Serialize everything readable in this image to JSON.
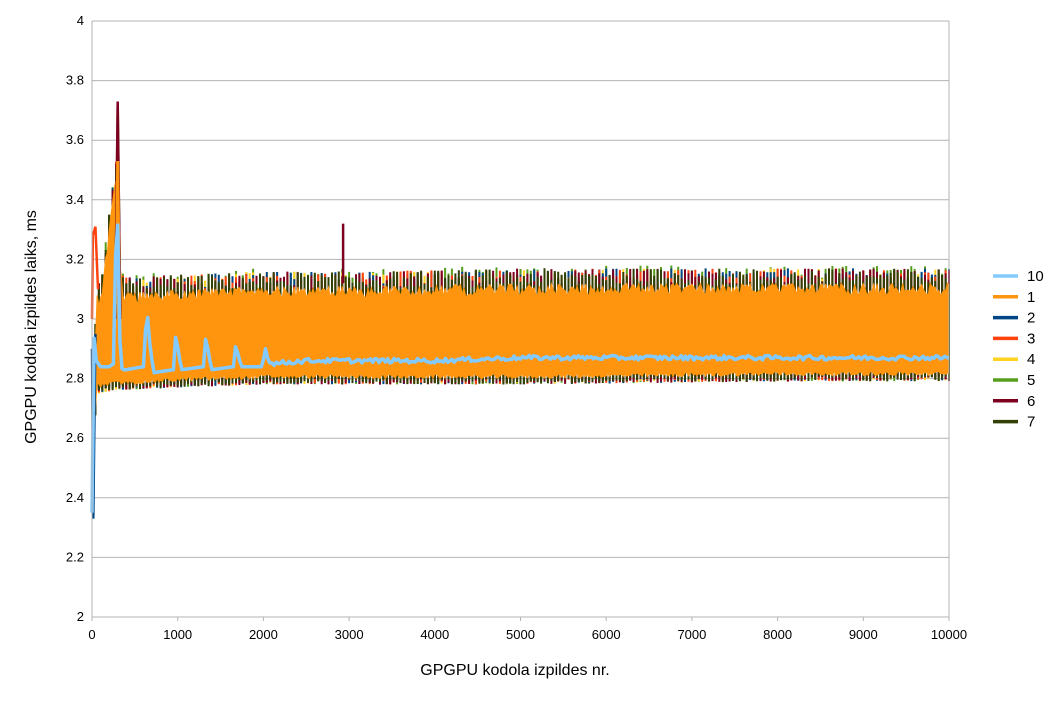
{
  "chart_data": {
    "type": "line",
    "title": "",
    "xlabel": "GPGPU kodola izpildes nr.",
    "ylabel": "GPGPU kodola izpildes laiks, ms",
    "xlim": [
      0,
      10000
    ],
    "ylim": [
      2,
      4
    ],
    "x_ticks": [
      0,
      1000,
      2000,
      3000,
      4000,
      5000,
      6000,
      7000,
      8000,
      9000,
      10000
    ],
    "y_ticks": [
      2,
      2.2,
      2.4,
      2.6,
      2.8,
      3,
      3.2,
      3.4,
      3.6,
      3.8,
      4
    ],
    "grid": "horizontal",
    "legend_position": "right",
    "series": [
      {
        "name": "10",
        "color": "#83caff",
        "description": "mean series",
        "x": [
          0,
          20,
          50,
          100,
          200,
          250,
          290,
          310,
          330,
          360,
          400,
          600,
          640,
          680,
          720,
          950,
          980,
          1010,
          1050,
          1300,
          1330,
          1360,
          1400,
          1650,
          1680,
          1710,
          1750,
          1990,
          2020,
          2050,
          2100,
          2500,
          3000,
          3500,
          4000,
          5000,
          6000,
          7000,
          8000,
          9000,
          10000
        ],
        "y": [
          2.35,
          2.95,
          2.86,
          2.84,
          2.84,
          2.85,
          3.43,
          3.2,
          2.84,
          2.83,
          2.83,
          2.84,
          3.04,
          2.9,
          2.82,
          2.83,
          2.96,
          2.88,
          2.83,
          2.84,
          2.95,
          2.88,
          2.83,
          2.84,
          2.92,
          2.87,
          2.84,
          2.84,
          2.91,
          2.87,
          2.85,
          2.86,
          2.86,
          2.86,
          2.86,
          2.87,
          2.87,
          2.87,
          2.87,
          2.87,
          2.87
        ]
      },
      {
        "name": "1",
        "color": "#ff950e",
        "description": "band",
        "x": [
          0,
          50,
          100,
          300,
          320,
          360,
          400,
          1000,
          2000,
          3000,
          5000,
          8000,
          10000
        ],
        "y_low": [
          2.4,
          2.77,
          2.77,
          2.78,
          2.78,
          2.78,
          2.78,
          2.79,
          2.8,
          2.8,
          2.8,
          2.81,
          2.81
        ],
        "y_high": [
          2.4,
          3.08,
          3.08,
          3.53,
          3.2,
          3.1,
          3.09,
          3.1,
          3.11,
          3.11,
          3.12,
          3.12,
          3.12
        ]
      },
      {
        "name": "2",
        "color": "#004586",
        "peak": 3.63,
        "min": 2.33
      },
      {
        "name": "3",
        "color": "#ff420e",
        "peak": 3.31
      },
      {
        "name": "4",
        "color": "#ffd320",
        "peak": 3.18
      },
      {
        "name": "5",
        "color": "#579d1c",
        "peak": 3.71
      },
      {
        "name": "6",
        "color": "#7e0021",
        "peak": 3.73,
        "spike": {
          "x": 2930,
          "y": 3.32
        }
      },
      {
        "name": "7",
        "color": "#314004"
      }
    ]
  }
}
